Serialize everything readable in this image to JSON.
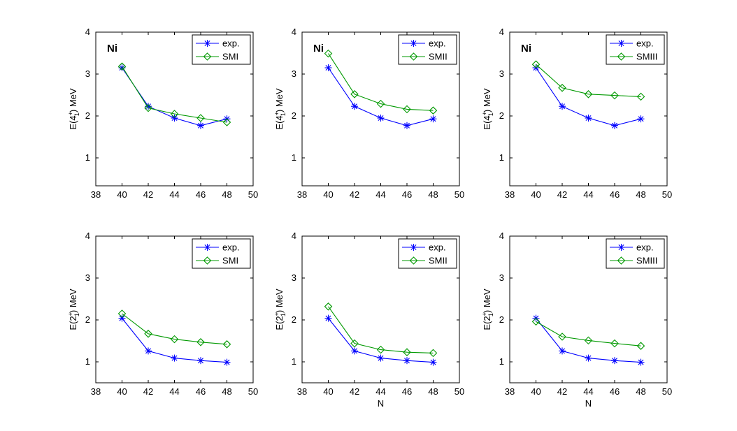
{
  "chart_data": [
    {
      "type": "line",
      "annotation": "Ni",
      "ylabel": {
        "base": "E(4",
        "sup": "+",
        "sub": "1",
        "tail": ") MeV"
      },
      "xlabel": "",
      "xlim": [
        38,
        50
      ],
      "ylim": [
        0.35,
        4
      ],
      "xticks": [
        "38",
        "40",
        "42",
        "44",
        "46",
        "48",
        "50"
      ],
      "yticks": [
        "1",
        "2",
        "3",
        "4"
      ],
      "x": [
        40,
        42,
        44,
        46,
        48
      ],
      "series": [
        {
          "name": "exp.",
          "color": "#0000ff",
          "marker": "star",
          "values": [
            3.15,
            2.23,
            1.95,
            1.77,
            1.93
          ]
        },
        {
          "name": "SMI",
          "color": "#009900",
          "marker": "diamond",
          "values": [
            3.18,
            2.19,
            2.05,
            1.95,
            1.85
          ]
        }
      ]
    },
    {
      "type": "line",
      "annotation": "Ni",
      "ylabel": {
        "base": "E(4",
        "sup": "+",
        "sub": "1",
        "tail": ") MeV"
      },
      "xlabel": "",
      "xlim": [
        38,
        50
      ],
      "ylim": [
        0.35,
        4
      ],
      "xticks": [
        "38",
        "40",
        "42",
        "44",
        "46",
        "48",
        "50"
      ],
      "yticks": [
        "1",
        "2",
        "3",
        "4"
      ],
      "x": [
        40,
        42,
        44,
        46,
        48
      ],
      "series": [
        {
          "name": "exp.",
          "color": "#0000ff",
          "marker": "star",
          "values": [
            3.15,
            2.23,
            1.95,
            1.77,
            1.93
          ]
        },
        {
          "name": "SMII",
          "color": "#009900",
          "marker": "diamond",
          "values": [
            3.49,
            2.52,
            2.29,
            2.16,
            2.13
          ]
        }
      ]
    },
    {
      "type": "line",
      "annotation": "Ni",
      "ylabel": {
        "base": "E(4",
        "sup": "+",
        "sub": "1",
        "tail": ") MeV"
      },
      "xlabel": "",
      "xlim": [
        38,
        50
      ],
      "ylim": [
        0.35,
        4
      ],
      "xticks": [
        "38",
        "40",
        "42",
        "44",
        "46",
        "48",
        "50"
      ],
      "yticks": [
        "1",
        "2",
        "3",
        "4"
      ],
      "x": [
        40,
        42,
        44,
        46,
        48
      ],
      "series": [
        {
          "name": "exp.",
          "color": "#0000ff",
          "marker": "star",
          "values": [
            3.15,
            2.23,
            1.95,
            1.77,
            1.93
          ]
        },
        {
          "name": "SMIII",
          "color": "#009900",
          "marker": "diamond",
          "values": [
            3.23,
            2.67,
            2.52,
            2.49,
            2.46
          ]
        }
      ]
    },
    {
      "type": "line",
      "annotation": "",
      "ylabel": {
        "base": "E(2",
        "sup": "+",
        "sub": "1",
        "tail": ") MeV"
      },
      "xlabel": "",
      "xlim": [
        38,
        50
      ],
      "ylim": [
        0.5,
        4
      ],
      "xticks": [
        "38",
        "40",
        "42",
        "44",
        "46",
        "48",
        "50"
      ],
      "yticks": [
        "1",
        "2",
        "3",
        "4"
      ],
      "x": [
        40,
        42,
        44,
        46,
        48
      ],
      "series": [
        {
          "name": "exp.",
          "color": "#0000ff",
          "marker": "star",
          "values": [
            2.04,
            1.26,
            1.09,
            1.03,
            0.99
          ]
        },
        {
          "name": "SMI",
          "color": "#009900",
          "marker": "diamond",
          "values": [
            2.15,
            1.67,
            1.54,
            1.47,
            1.42
          ]
        }
      ]
    },
    {
      "type": "line",
      "annotation": "",
      "ylabel": {
        "base": "E(2",
        "sup": "+",
        "sub": "1",
        "tail": ") MeV"
      },
      "xlabel": "N",
      "xlim": [
        38,
        50
      ],
      "ylim": [
        0.5,
        4
      ],
      "xticks": [
        "38",
        "40",
        "42",
        "44",
        "46",
        "48",
        "50"
      ],
      "yticks": [
        "1",
        "2",
        "3",
        "4"
      ],
      "x": [
        40,
        42,
        44,
        46,
        48
      ],
      "series": [
        {
          "name": "exp.",
          "color": "#0000ff",
          "marker": "star",
          "values": [
            2.04,
            1.26,
            1.09,
            1.03,
            0.99
          ]
        },
        {
          "name": "SMII",
          "color": "#009900",
          "marker": "diamond",
          "values": [
            2.32,
            1.44,
            1.29,
            1.23,
            1.21
          ]
        }
      ]
    },
    {
      "type": "line",
      "annotation": "",
      "ylabel": {
        "base": "E(2",
        "sup": "+",
        "sub": "1",
        "tail": ") MeV"
      },
      "xlabel": "N",
      "xlim": [
        38,
        50
      ],
      "ylim": [
        0.5,
        4
      ],
      "xticks": [
        "38",
        "40",
        "42",
        "44",
        "46",
        "48",
        "50"
      ],
      "yticks": [
        "1",
        "2",
        "3",
        "4"
      ],
      "x": [
        40,
        42,
        44,
        46,
        48
      ],
      "series": [
        {
          "name": "exp.",
          "color": "#0000ff",
          "marker": "star",
          "values": [
            2.04,
            1.26,
            1.09,
            1.03,
            0.99
          ]
        },
        {
          "name": "SMIII",
          "color": "#009900",
          "marker": "diamond",
          "values": [
            1.96,
            1.6,
            1.51,
            1.44,
            1.38
          ]
        }
      ]
    }
  ]
}
